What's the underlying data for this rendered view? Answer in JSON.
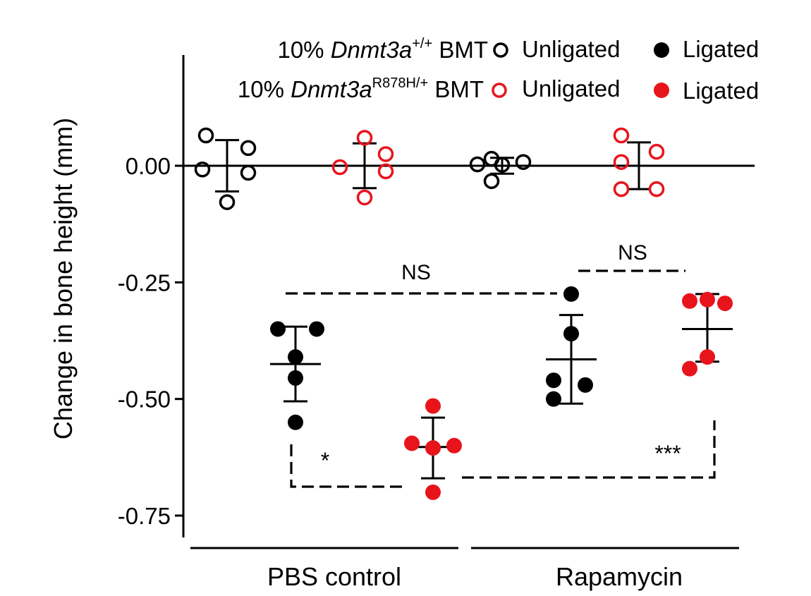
{
  "chart_data": {
    "type": "scatter",
    "ylabel": "Change in bone height (mm)",
    "ylim": [
      -0.79,
      0.24
    ],
    "yticks": [
      0.0,
      -0.25,
      -0.5,
      -0.75
    ],
    "ytick_labels": [
      "0.00",
      "-0.25",
      "-0.50",
      "-0.75"
    ],
    "zero_line": true,
    "groups": [
      "PBS control",
      "Rapamycin"
    ],
    "legend": {
      "placement": "top-center",
      "rows": [
        {
          "prefix": "10% ",
          "gene": "Dnmt3a",
          "sup": "+/+",
          "suffix": " BMT",
          "color": "#000000",
          "unligated": "Unligated",
          "ligated": "Ligated"
        },
        {
          "prefix": "10% ",
          "gene": "Dnmt3a",
          "sup": "R878H/+",
          "suffix": " BMT",
          "color": "#e8141c",
          "unligated": "Unligated",
          "ligated": "Ligated"
        }
      ]
    },
    "series": [
      {
        "group": "PBS control",
        "genotype": "+/+",
        "condition": "Unligated",
        "color": "#000000",
        "filled": false,
        "points": [
          [
            -0.03,
            0.065
          ],
          [
            0.03,
            0.038
          ],
          [
            -0.035,
            -0.008
          ],
          [
            0.03,
            -0.015
          ],
          [
            0.0,
            -0.078
          ]
        ],
        "mean": 0.0,
        "sd_upper": 0.055,
        "sd_lower": -0.055
      },
      {
        "group": "PBS control",
        "genotype": "R878H/+",
        "condition": "Unligated",
        "color": "#e8141c",
        "filled": false,
        "points": [
          [
            0.0,
            0.06
          ],
          [
            0.03,
            0.025
          ],
          [
            -0.035,
            -0.003
          ],
          [
            0.03,
            -0.012
          ],
          [
            0.0,
            -0.068
          ]
        ],
        "mean": 0.0,
        "sd_upper": 0.048,
        "sd_lower": -0.048
      },
      {
        "group": "PBS control",
        "genotype": "+/+",
        "condition": "Ligated",
        "color": "#000000",
        "filled": true,
        "points": [
          [
            -0.025,
            -0.35
          ],
          [
            0.03,
            -0.35
          ],
          [
            0.0,
            -0.41
          ],
          [
            0.0,
            -0.455
          ],
          [
            0.0,
            -0.55
          ]
        ],
        "mean": -0.425,
        "sd_upper": -0.345,
        "sd_lower": -0.505
      },
      {
        "group": "PBS control",
        "genotype": "R878H/+",
        "condition": "Ligated",
        "color": "#e8141c",
        "filled": true,
        "points": [
          [
            0.0,
            -0.515
          ],
          [
            -0.03,
            -0.595
          ],
          [
            0.0,
            -0.605
          ],
          [
            0.03,
            -0.6
          ],
          [
            0.0,
            -0.7
          ]
        ],
        "mean": -0.603,
        "sd_upper": -0.54,
        "sd_lower": -0.67
      },
      {
        "group": "Rapamycin",
        "genotype": "+/+",
        "condition": "Unligated",
        "color": "#000000",
        "filled": false,
        "points": [
          [
            -0.035,
            0.003
          ],
          [
            -0.015,
            0.015
          ],
          [
            0.0,
            0.002
          ],
          [
            0.03,
            0.008
          ],
          [
            -0.015,
            -0.033
          ]
        ],
        "mean": 0.0,
        "sd_upper": 0.017,
        "sd_lower": -0.017
      },
      {
        "group": "Rapamycin",
        "genotype": "R878H/+",
        "condition": "Unligated",
        "color": "#e8141c",
        "filled": false,
        "points": [
          [
            -0.025,
            0.065
          ],
          [
            0.025,
            0.03
          ],
          [
            -0.025,
            0.008
          ],
          [
            -0.025,
            -0.05
          ],
          [
            0.025,
            -0.05
          ]
        ],
        "mean": 0.0,
        "sd_upper": 0.05,
        "sd_lower": -0.05
      },
      {
        "group": "Rapamycin",
        "genotype": "+/+",
        "condition": "Ligated",
        "color": "#000000",
        "filled": true,
        "points": [
          [
            0.0,
            -0.275
          ],
          [
            0.0,
            -0.36
          ],
          [
            -0.025,
            -0.46
          ],
          [
            0.02,
            -0.47
          ],
          [
            -0.025,
            -0.5
          ]
        ],
        "mean": -0.415,
        "sd_upper": -0.32,
        "sd_lower": -0.51
      },
      {
        "group": "Rapamycin",
        "genotype": "R878H/+",
        "condition": "Ligated",
        "color": "#e8141c",
        "filled": true,
        "points": [
          [
            -0.025,
            -0.29
          ],
          [
            0.0,
            -0.287
          ],
          [
            0.025,
            -0.295
          ],
          [
            0.0,
            -0.41
          ],
          [
            -0.025,
            -0.435
          ]
        ],
        "mean": -0.35,
        "sd_upper": -0.275,
        "sd_lower": -0.42
      }
    ],
    "annotations": [
      {
        "text": "NS",
        "between": [
          "PBS control +/+ Ligated",
          "Rapamycin +/+ Ligated"
        ]
      },
      {
        "text": "NS",
        "between": [
          "Rapamycin +/+ Ligated",
          "Rapamycin R878H/+ Ligated"
        ]
      },
      {
        "text": "*",
        "between": [
          "PBS control +/+ Ligated",
          "PBS control R878H/+ Ligated"
        ]
      },
      {
        "text": "***",
        "between": [
          "PBS control R878H/+ Ligated",
          "Rapamycin R878H/+ Ligated"
        ]
      }
    ]
  }
}
